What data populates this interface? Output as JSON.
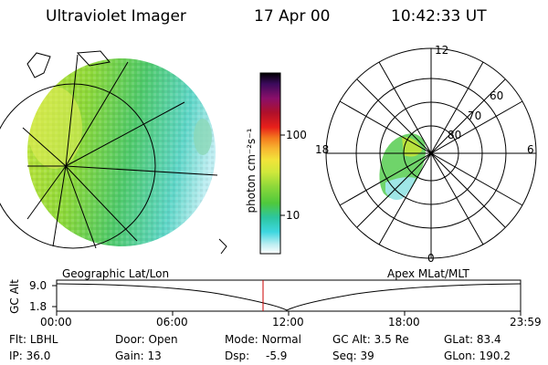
{
  "header": {
    "instrument": "Ultraviolet Imager",
    "date": "17 Apr 00",
    "time": "10:42:33 UT"
  },
  "geo_panel": {
    "label": "Geographic Lat/Lon"
  },
  "colorbar": {
    "unit_label": "photon cm⁻²s⁻¹",
    "ticks": [
      "100",
      "10"
    ],
    "colors": [
      "#000000",
      "#3b0a5c",
      "#8a0f6a",
      "#b0102a",
      "#e8201a",
      "#f47b1e",
      "#f7b731",
      "#f2e33a",
      "#cfe83b",
      "#8cd83a",
      "#4fc93c",
      "#2cc6a0",
      "#3ed7e0",
      "#bfeef2",
      "#ffffff"
    ]
  },
  "polar_panel": {
    "label": "Apex MLat/MLT",
    "mlt_labels": {
      "top": "12",
      "bottom": "0",
      "left": "18",
      "right": "6"
    },
    "lat_labels": [
      "80",
      "70",
      "60"
    ]
  },
  "timeline": {
    "ylabel": "GC Alt",
    "yticks": [
      "9.0",
      "1.8"
    ],
    "xticks": [
      "00:00",
      "06:00",
      "12:00",
      "18:00",
      "23:59"
    ],
    "marker_time": "10:42"
  },
  "info": {
    "row1": [
      {
        "label": "Flt:",
        "value": "LBHL"
      },
      {
        "label": "Door:",
        "value": "Open"
      },
      {
        "label": "Mode:",
        "value": "Normal"
      },
      {
        "label": "GC Alt:",
        "value": "3.5 Re"
      },
      {
        "label": "GLat:",
        "value": "83.4"
      }
    ],
    "row2": [
      {
        "label": "IP:",
        "value": "36.0"
      },
      {
        "label": "Gain:",
        "value": "13"
      },
      {
        "label": "Dsp:",
        "value": "-5.9"
      },
      {
        "label": "Seq:",
        "value": "39"
      },
      {
        "label": "GLon:",
        "value": "190.2"
      }
    ]
  }
}
